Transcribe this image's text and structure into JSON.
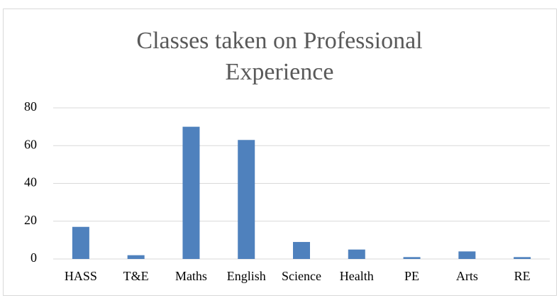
{
  "chart_data": {
    "type": "bar",
    "title": "Classes taken on Professional Experience",
    "categories": [
      "HASS",
      "T&E",
      "Maths",
      "English",
      "Science",
      "Health",
      "PE",
      "Arts",
      "RE"
    ],
    "values": [
      17,
      2,
      70,
      63,
      9,
      5,
      1,
      4,
      1
    ],
    "color": "#4f81bd",
    "ylim": [
      0,
      80
    ],
    "yticks": [
      0,
      20,
      40,
      60,
      80
    ],
    "grid": true
  }
}
